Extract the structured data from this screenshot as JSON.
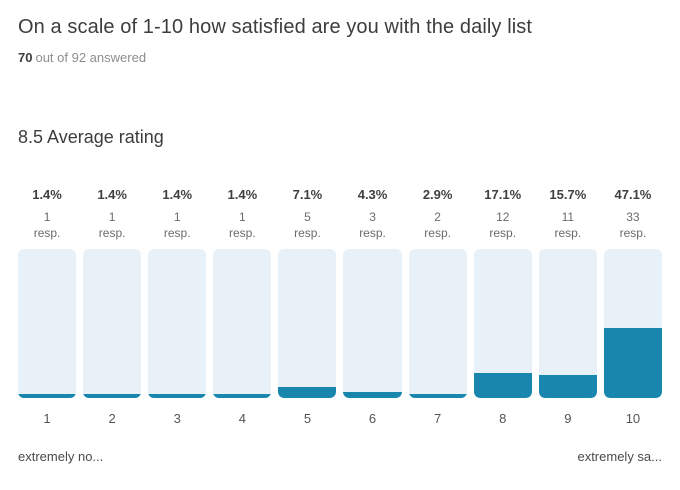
{
  "header": {
    "title": "On a scale of 1-10 how satisfied are you with the daily list",
    "answered_count": "70",
    "answered_rest": "out of 92 answered",
    "average_rating": "8.5 Average rating"
  },
  "chart_data": {
    "type": "bar",
    "title": "On a scale of 1-10 how satisfied are you with the daily list",
    "categories": [
      "1",
      "2",
      "3",
      "4",
      "5",
      "6",
      "7",
      "8",
      "9",
      "10"
    ],
    "percent_labels": [
      "1.4%",
      "1.4%",
      "1.4%",
      "1.4%",
      "7.1%",
      "4.3%",
      "2.9%",
      "17.1%",
      "15.7%",
      "47.1%"
    ],
    "percentages": [
      1.4,
      1.4,
      1.4,
      1.4,
      7.1,
      4.3,
      2.9,
      17.1,
      15.7,
      47.1
    ],
    "responses": [
      1,
      1,
      1,
      1,
      5,
      3,
      2,
      12,
      11,
      33
    ],
    "resp_label": "resp.",
    "answered": 70,
    "total": 92,
    "average": 8.5,
    "ylim": [
      0,
      100
    ],
    "grid": false,
    "legend": false,
    "left_label": "extremely no...",
    "right_label": "extremely sa...",
    "colors": {
      "track": "#e7f1f7",
      "fill": "#1987ad"
    }
  }
}
